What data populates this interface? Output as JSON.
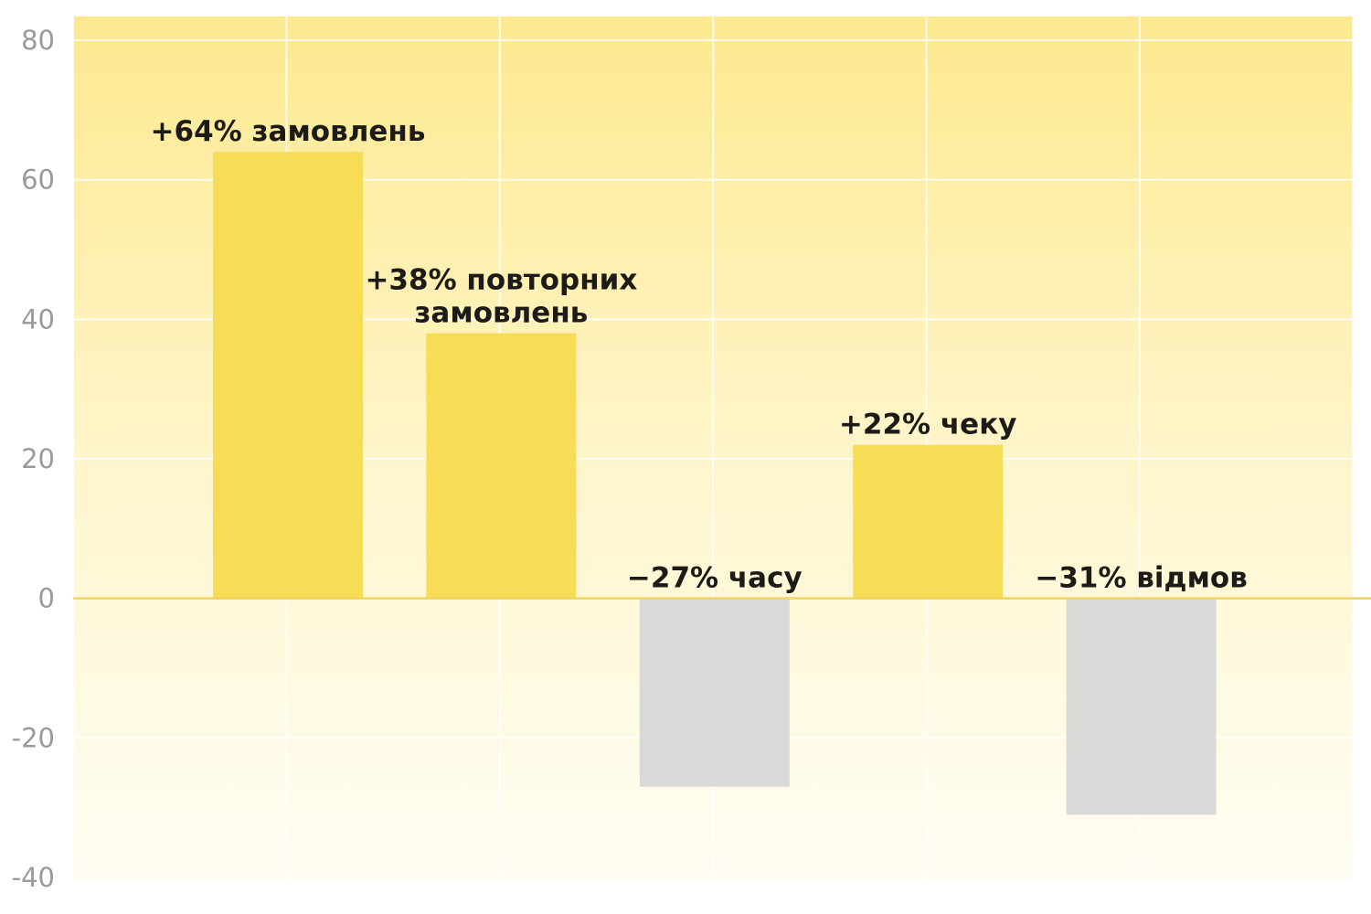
{
  "chart_data": {
    "type": "bar",
    "title": "",
    "xlabel": "",
    "ylabel": "",
    "ylim": [
      -40,
      80
    ],
    "yticks": [
      80,
      60,
      40,
      20,
      0,
      -20,
      -40
    ],
    "grid": true,
    "legend": "none",
    "colors": {
      "positive": "#f7dc56",
      "negative": "#d9d9d7",
      "background_top": "#fde98f",
      "background_bottom": "#fffdf3",
      "zero_line": "#f2d45a",
      "grid": "#ffffff"
    },
    "bars": [
      {
        "value": 64,
        "label_lines": [
          "+64% замовлень"
        ]
      },
      {
        "value": 38,
        "label_lines": [
          "+38% повторних",
          "замовлень"
        ]
      },
      {
        "value": -27,
        "label_lines": [
          "−27% часу"
        ]
      },
      {
        "value": 22,
        "label_lines": [
          "+22% чеку"
        ]
      },
      {
        "value": -31,
        "label_lines": [
          "−31% відмов"
        ]
      }
    ]
  }
}
